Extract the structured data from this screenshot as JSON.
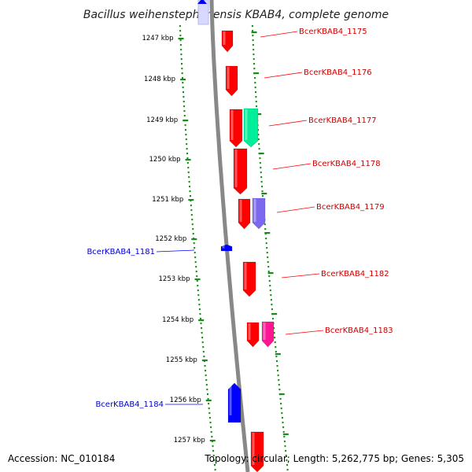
{
  "title": "Bacillus weihenstephanensis KBAB4, complete genome",
  "footer": {
    "accession": "Accession: NC_010184",
    "summary": "Topology: circular; Length: 5,262,775 bp; Genes: 5,305"
  },
  "kbp_labels": [
    "1247 kbp",
    "1248 kbp",
    "1249 kbp",
    "1250 kbp",
    "1251 kbp",
    "1252 kbp",
    "1253 kbp",
    "1254 kbp",
    "1255 kbp",
    "1256 kbp",
    "1257 kbp"
  ],
  "genes": [
    {
      "label": "BcerKBAB4_1175",
      "strand": "fwd",
      "color": "#ff0000"
    },
    {
      "label": "BcerKBAB4_1176",
      "strand": "fwd",
      "color": "#ff0000"
    },
    {
      "label": "BcerKBAB4_1177",
      "strand": "fwd",
      "color": "#ff0000"
    },
    {
      "label": "BcerKBAB4_1178",
      "strand": "fwd",
      "color": "#ff0000"
    },
    {
      "label": "BcerKBAB4_1179",
      "strand": "fwd",
      "color": "#ff0000"
    },
    {
      "label": "BcerKBAB4_1181",
      "strand": "rev",
      "color": "#0000ff"
    },
    {
      "label": "BcerKBAB4_1182",
      "strand": "fwd",
      "color": "#ff0000"
    },
    {
      "label": "BcerKBAB4_1183",
      "strand": "fwd",
      "color": "#ff0000"
    },
    {
      "label": "BcerKBAB4_1184",
      "strand": "rev",
      "color": "#0000ff"
    }
  ],
  "colors": {
    "forward": "#ff0000",
    "reverse": "#0000ff",
    "backbone": "#888888",
    "tick": "#1a8a1a",
    "green_feature": "#00ee99",
    "purple_feature": "#7b68ee",
    "pink_feature": "#ff1493"
  }
}
